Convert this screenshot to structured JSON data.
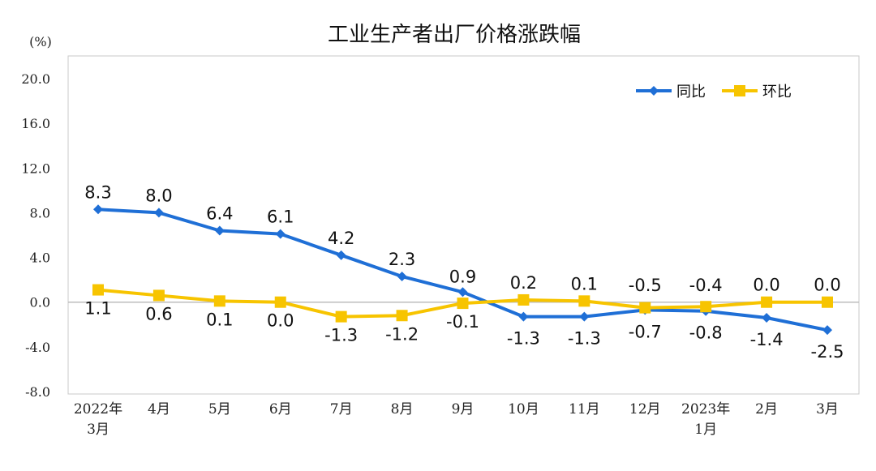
{
  "chart_data": {
    "type": "line",
    "title": "工业生产者出厂价格涨跌幅",
    "ylabel": "(%)",
    "xlabel": "",
    "ylim": [
      -8.0,
      20.0
    ],
    "yticks": [
      "20.0",
      "16.0",
      "12.0",
      "8.0",
      "4.0",
      "0.0",
      "-4.0",
      "-8.0"
    ],
    "categories": [
      [
        "2022年",
        "3月"
      ],
      [
        "4月"
      ],
      [
        "5月"
      ],
      [
        "6月"
      ],
      [
        "7月"
      ],
      [
        "8月"
      ],
      [
        "9月"
      ],
      [
        "10月"
      ],
      [
        "11月"
      ],
      [
        "12月"
      ],
      [
        "2023年",
        "1月"
      ],
      [
        "2月"
      ],
      [
        "3月"
      ]
    ],
    "series": [
      {
        "name": "同比",
        "color": "#1f6fd6",
        "marker": "diamond",
        "values": [
          8.3,
          8.0,
          6.4,
          6.1,
          4.2,
          2.3,
          0.9,
          -1.3,
          -1.3,
          -0.7,
          -0.8,
          -1.4,
          -2.5
        ],
        "labels": [
          "8.3",
          "8.0",
          "6.4",
          "6.1",
          "4.2",
          "2.3",
          "0.9",
          "-1.3",
          "-1.3",
          "-0.7",
          "-0.8",
          "-1.4",
          "-2.5"
        ]
      },
      {
        "name": "环比",
        "color": "#f7c400",
        "marker": "square",
        "values": [
          1.1,
          0.6,
          0.1,
          0.0,
          -1.3,
          -1.2,
          -0.1,
          0.2,
          0.1,
          -0.5,
          -0.4,
          0.0,
          0.0
        ],
        "labels": [
          "1.1",
          "0.6",
          "0.1",
          "0.0",
          "-1.3",
          "-1.2",
          "-0.1",
          "0.2",
          "0.1",
          "-0.5",
          "-0.4",
          "0.0",
          "0.0"
        ]
      }
    ],
    "grid": false,
    "legend": "top-right"
  }
}
